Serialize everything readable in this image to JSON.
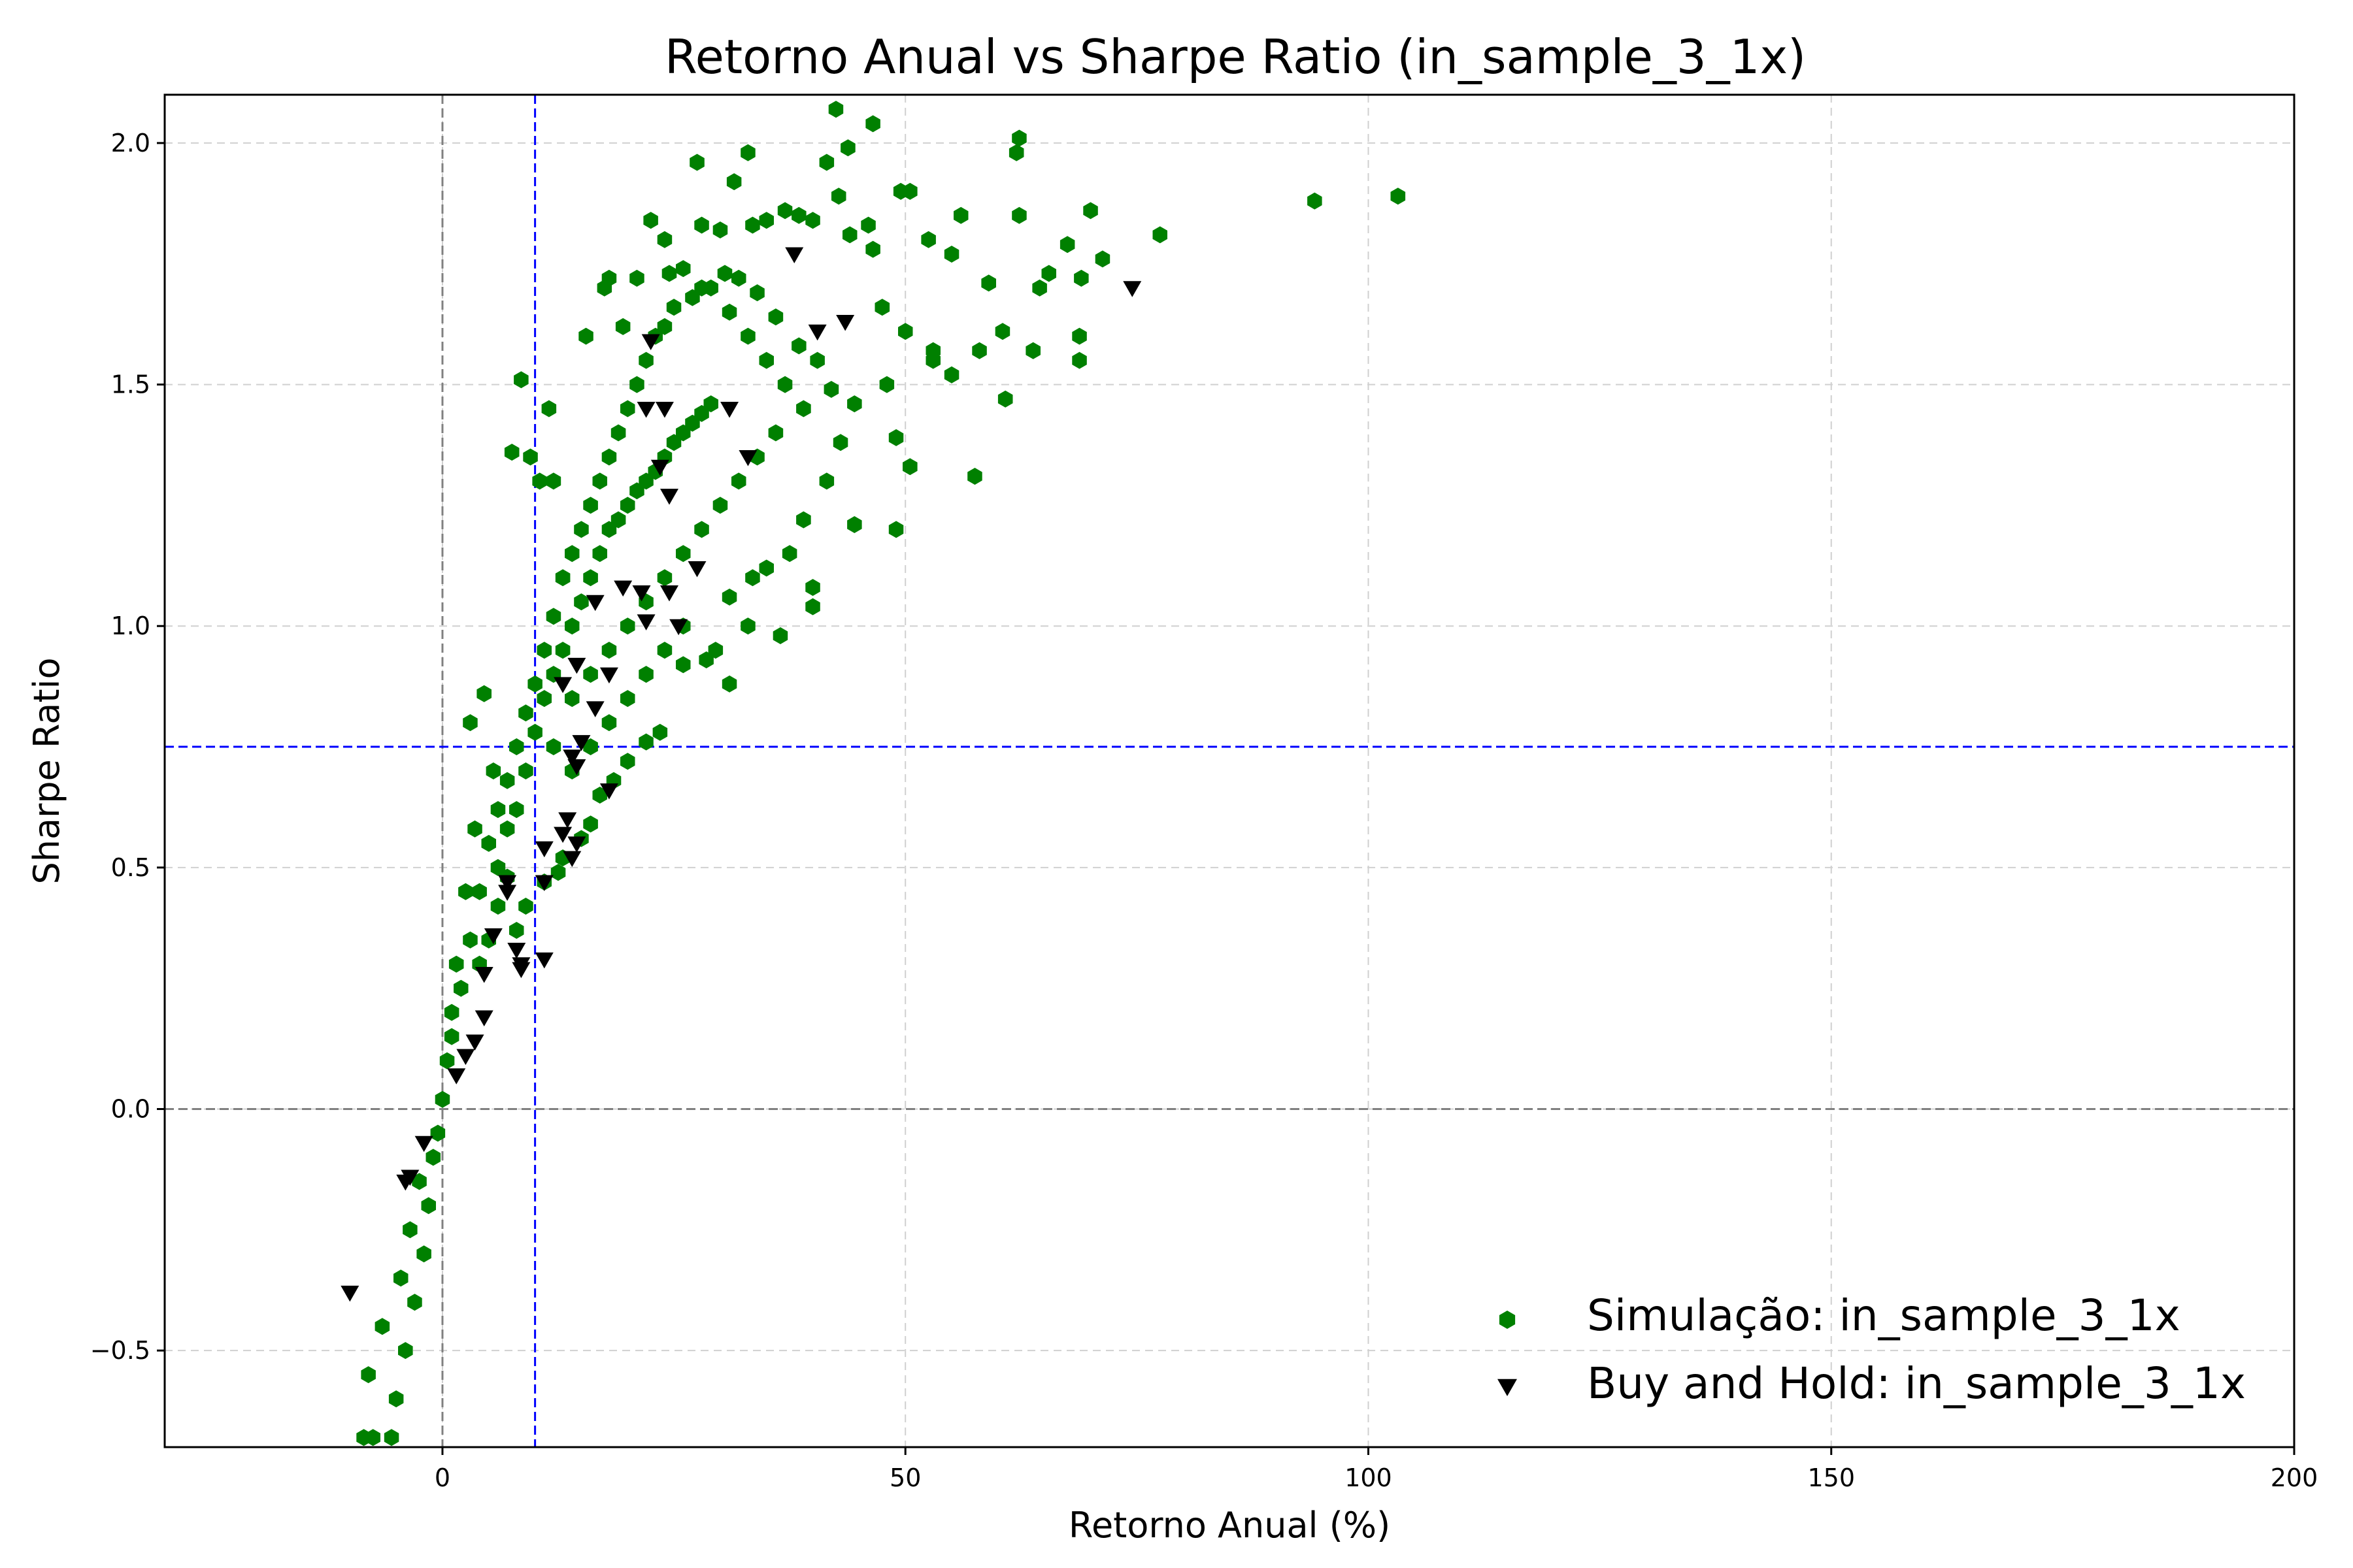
{
  "chart_data": {
    "type": "scatter",
    "title": "Retorno Anual vs Sharpe Ratio (in_sample_3_1x)",
    "xlabel": "Retorno Anual (%)",
    "ylabel": "Sharpe Ratio",
    "xlim": [
      -30,
      200
    ],
    "ylim": [
      -0.7,
      2.1
    ],
    "xticks": [
      0,
      50,
      100,
      150,
      200
    ],
    "yticks": [
      -0.5,
      0.0,
      0.5,
      1.0,
      1.5,
      2.0
    ],
    "xtick_labels": [
      "0",
      "50",
      "100",
      "150",
      "200"
    ],
    "ytick_labels": [
      "−0.5",
      "0.0",
      "0.5",
      "1.0",
      "1.5",
      "2.0"
    ],
    "grid": true,
    "legend_position": "lower-right",
    "reference_lines": [
      {
        "axis": "x",
        "value": 0,
        "color": "#808080",
        "style": "dashed"
      },
      {
        "axis": "y",
        "value": 0,
        "color": "#808080",
        "style": "dashed"
      },
      {
        "axis": "x",
        "value": 10,
        "color": "#0000ff",
        "style": "dashed"
      },
      {
        "axis": "y",
        "value": 0.75,
        "color": "#0000ff",
        "style": "dashed"
      }
    ],
    "series": [
      {
        "name": "Simulação: in_sample_3_1x",
        "marker": "hexagon",
        "color": "#008000",
        "points": [
          [
            42.5,
            2.07
          ],
          [
            46.5,
            2.04
          ],
          [
            62.3,
            2.01
          ],
          [
            62.0,
            1.98
          ],
          [
            33.0,
            1.98
          ],
          [
            27.5,
            1.96
          ],
          [
            41.5,
            1.96
          ],
          [
            43.8,
            1.99
          ],
          [
            94.2,
            1.88
          ],
          [
            103.2,
            1.89
          ],
          [
            31.5,
            1.92
          ],
          [
            49.5,
            1.9
          ],
          [
            50.5,
            1.9
          ],
          [
            42.8,
            1.89
          ],
          [
            37.0,
            1.86
          ],
          [
            38.5,
            1.85
          ],
          [
            52.5,
            1.8
          ],
          [
            46.0,
            1.83
          ],
          [
            56.0,
            1.85
          ],
          [
            62.3,
            1.85
          ],
          [
            70.0,
            1.86
          ],
          [
            77.5,
            1.81
          ],
          [
            67.5,
            1.79
          ],
          [
            71.3,
            1.76
          ],
          [
            22.5,
            1.84
          ],
          [
            24.0,
            1.8
          ],
          [
            28.0,
            1.83
          ],
          [
            30.0,
            1.82
          ],
          [
            33.5,
            1.83
          ],
          [
            35.0,
            1.84
          ],
          [
            40.0,
            1.84
          ],
          [
            44.0,
            1.81
          ],
          [
            46.5,
            1.78
          ],
          [
            55.0,
            1.77
          ],
          [
            59.0,
            1.71
          ],
          [
            65.5,
            1.73
          ],
          [
            69.0,
            1.72
          ],
          [
            64.5,
            1.7
          ],
          [
            60.5,
            1.61
          ],
          [
            58.0,
            1.57
          ],
          [
            63.8,
            1.57
          ],
          [
            68.8,
            1.6
          ],
          [
            68.8,
            1.55
          ],
          [
            47.5,
            1.66
          ],
          [
            50.0,
            1.61
          ],
          [
            53.0,
            1.57
          ],
          [
            53.0,
            1.55
          ],
          [
            55.0,
            1.52
          ],
          [
            48.0,
            1.5
          ],
          [
            49.0,
            1.39
          ],
          [
            50.5,
            1.33
          ],
          [
            57.5,
            1.31
          ],
          [
            60.8,
            1.47
          ],
          [
            49.0,
            1.2
          ],
          [
            44.5,
            1.21
          ],
          [
            40.0,
            1.04
          ],
          [
            40.0,
            1.08
          ],
          [
            36.5,
            0.98
          ],
          [
            33.0,
            1.0
          ],
          [
            31.0,
            0.88
          ],
          [
            29.5,
            0.95
          ],
          [
            28.5,
            0.93
          ],
          [
            26.0,
            0.92
          ],
          [
            23.5,
            0.78
          ],
          [
            22.0,
            0.76
          ],
          [
            20.0,
            0.72
          ],
          [
            18.5,
            0.68
          ],
          [
            17.0,
            0.65
          ],
          [
            16.0,
            0.59
          ],
          [
            15.0,
            0.56
          ],
          [
            13.0,
            0.52
          ],
          [
            12.5,
            0.49
          ],
          [
            11.0,
            0.47
          ],
          [
            9.0,
            0.42
          ],
          [
            8.0,
            0.37
          ],
          [
            8.5,
            1.51
          ],
          [
            11.5,
            1.45
          ],
          [
            7.5,
            1.36
          ],
          [
            9.5,
            1.35
          ],
          [
            10.5,
            1.3
          ],
          [
            12.0,
            1.3
          ],
          [
            15.5,
            1.6
          ],
          [
            17.5,
            1.7
          ],
          [
            18.0,
            1.72
          ],
          [
            19.5,
            1.62
          ],
          [
            21.0,
            1.72
          ],
          [
            24.5,
            1.73
          ],
          [
            26.0,
            1.74
          ],
          [
            28.0,
            1.7
          ],
          [
            30.5,
            1.73
          ],
          [
            32.0,
            1.72
          ],
          [
            34.0,
            1.69
          ],
          [
            36.0,
            1.64
          ],
          [
            38.5,
            1.58
          ],
          [
            40.5,
            1.55
          ],
          [
            42.0,
            1.49
          ],
          [
            44.5,
            1.46
          ],
          [
            43.0,
            1.38
          ],
          [
            41.5,
            1.3
          ],
          [
            39.0,
            1.22
          ],
          [
            37.5,
            1.15
          ],
          [
            35.0,
            1.12
          ],
          [
            33.5,
            1.1
          ],
          [
            31.0,
            1.06
          ],
          [
            3.0,
            0.8
          ],
          [
            4.5,
            0.86
          ],
          [
            5.5,
            0.7
          ],
          [
            3.5,
            0.58
          ],
          [
            2.5,
            0.45
          ],
          [
            1.5,
            0.3
          ],
          [
            1.0,
            0.2
          ],
          [
            0.5,
            0.1
          ],
          [
            0.0,
            0.02
          ],
          [
            -0.5,
            -0.05
          ],
          [
            -1.0,
            -0.1
          ],
          [
            -1.5,
            -0.2
          ],
          [
            -2.0,
            -0.3
          ],
          [
            -3.0,
            -0.4
          ],
          [
            -4.0,
            -0.5
          ],
          [
            -5.0,
            -0.6
          ],
          [
            -5.5,
            -0.68
          ],
          [
            -7.5,
            -0.68
          ],
          [
            -8.5,
            -0.68
          ],
          [
            -8.0,
            -0.55
          ],
          [
            -6.5,
            -0.45
          ],
          [
            -4.5,
            -0.35
          ],
          [
            -3.5,
            -0.25
          ],
          [
            -2.5,
            -0.15
          ],
          [
            1.0,
            0.15
          ],
          [
            2.0,
            0.25
          ],
          [
            3.0,
            0.35
          ],
          [
            4.0,
            0.45
          ],
          [
            5.0,
            0.55
          ],
          [
            6.0,
            0.62
          ],
          [
            7.0,
            0.68
          ],
          [
            8.0,
            0.75
          ],
          [
            9.0,
            0.82
          ],
          [
            10.0,
            0.88
          ],
          [
            11.0,
            0.95
          ],
          [
            12.0,
            1.02
          ],
          [
            13.0,
            1.1
          ],
          [
            14.0,
            1.15
          ],
          [
            15.0,
            1.2
          ],
          [
            16.0,
            1.25
          ],
          [
            17.0,
            1.3
          ],
          [
            18.0,
            1.35
          ],
          [
            19.0,
            1.4
          ],
          [
            20.0,
            1.45
          ],
          [
            21.0,
            1.5
          ],
          [
            22.0,
            1.55
          ],
          [
            23.0,
            1.6
          ],
          [
            24.0,
            1.62
          ],
          [
            25.0,
            1.66
          ],
          [
            27.0,
            1.68
          ],
          [
            29.0,
            1.7
          ],
          [
            31.0,
            1.65
          ],
          [
            33.0,
            1.6
          ],
          [
            35.0,
            1.55
          ],
          [
            37.0,
            1.5
          ],
          [
            39.0,
            1.45
          ],
          [
            6.0,
            0.5
          ],
          [
            7.0,
            0.58
          ],
          [
            8.0,
            0.62
          ],
          [
            9.0,
            0.7
          ],
          [
            10.0,
            0.78
          ],
          [
            11.0,
            0.85
          ],
          [
            12.0,
            0.9
          ],
          [
            13.0,
            0.95
          ],
          [
            14.0,
            1.0
          ],
          [
            15.0,
            1.05
          ],
          [
            16.0,
            1.1
          ],
          [
            17.0,
            1.15
          ],
          [
            18.0,
            1.2
          ],
          [
            19.0,
            1.22
          ],
          [
            20.0,
            1.25
          ],
          [
            21.0,
            1.28
          ],
          [
            22.0,
            1.3
          ],
          [
            23.0,
            1.32
          ],
          [
            24.0,
            1.35
          ],
          [
            25.0,
            1.38
          ],
          [
            26.0,
            1.4
          ],
          [
            27.0,
            1.42
          ],
          [
            28.0,
            1.44
          ],
          [
            29.0,
            1.46
          ],
          [
            14.0,
            0.85
          ],
          [
            16.0,
            0.9
          ],
          [
            18.0,
            0.95
          ],
          [
            20.0,
            1.0
          ],
          [
            22.0,
            1.05
          ],
          [
            24.0,
            1.1
          ],
          [
            26.0,
            1.15
          ],
          [
            28.0,
            1.2
          ],
          [
            30.0,
            1.25
          ],
          [
            32.0,
            1.3
          ],
          [
            34.0,
            1.35
          ],
          [
            36.0,
            1.4
          ],
          [
            12.0,
            0.75
          ],
          [
            14.0,
            0.7
          ],
          [
            16.0,
            0.75
          ],
          [
            18.0,
            0.8
          ],
          [
            20.0,
            0.85
          ],
          [
            22.0,
            0.9
          ],
          [
            24.0,
            0.95
          ],
          [
            26.0,
            1.0
          ],
          [
            4.0,
            0.3
          ],
          [
            5.0,
            0.35
          ],
          [
            6.0,
            0.42
          ],
          [
            7.0,
            0.48
          ]
        ]
      },
      {
        "name": "Buy and Hold: in_sample_3_1x",
        "marker": "triangle-down",
        "color": "#000000",
        "points": [
          [
            38.0,
            1.77
          ],
          [
            74.5,
            1.7
          ],
          [
            43.5,
            1.63
          ],
          [
            40.5,
            1.61
          ],
          [
            22.5,
            1.59
          ],
          [
            22.0,
            1.45
          ],
          [
            24.0,
            1.45
          ],
          [
            31.0,
            1.45
          ],
          [
            33.0,
            1.35
          ],
          [
            23.5,
            1.33
          ],
          [
            24.5,
            1.27
          ],
          [
            27.5,
            1.12
          ],
          [
            19.5,
            1.08
          ],
          [
            21.5,
            1.07
          ],
          [
            24.5,
            1.07
          ],
          [
            16.5,
            1.05
          ],
          [
            22.0,
            1.01
          ],
          [
            25.5,
            1.0
          ],
          [
            14.5,
            0.92
          ],
          [
            18.0,
            0.9
          ],
          [
            13.0,
            0.88
          ],
          [
            16.5,
            0.83
          ],
          [
            15.0,
            0.76
          ],
          [
            14.0,
            0.73
          ],
          [
            14.5,
            0.71
          ],
          [
            18.0,
            0.66
          ],
          [
            13.5,
            0.6
          ],
          [
            13.0,
            0.57
          ],
          [
            14.5,
            0.55
          ],
          [
            14.0,
            0.52
          ],
          [
            11.0,
            0.54
          ],
          [
            7.0,
            0.47
          ],
          [
            7.0,
            0.45
          ],
          [
            11.0,
            0.47
          ],
          [
            5.5,
            0.36
          ],
          [
            8.0,
            0.33
          ],
          [
            8.5,
            0.3
          ],
          [
            11.0,
            0.31
          ],
          [
            8.5,
            0.29
          ],
          [
            4.5,
            0.28
          ],
          [
            4.5,
            0.19
          ],
          [
            3.5,
            0.14
          ],
          [
            2.5,
            0.11
          ],
          [
            1.5,
            0.07
          ],
          [
            -2.0,
            -0.07
          ],
          [
            -3.5,
            -0.14
          ],
          [
            -4.0,
            -0.15
          ],
          [
            -10.0,
            -0.38
          ]
        ]
      }
    ]
  }
}
